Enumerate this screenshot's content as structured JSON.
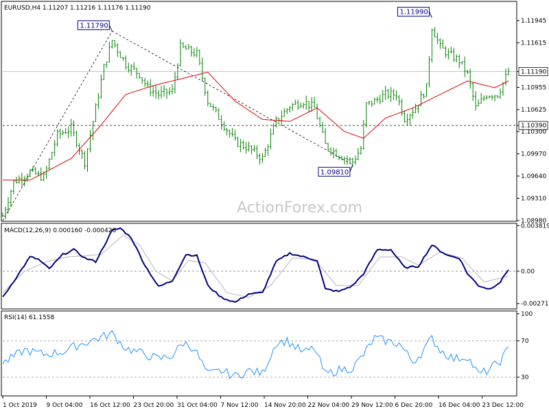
{
  "colors": {
    "price_bar": "#008000",
    "ma": "#e00000",
    "macd_line": "#000080",
    "signal_line": "#b4b4b4",
    "rsi": "#1e90ff",
    "callout_border": "#000080",
    "level_line": "#808080"
  },
  "watermark": "ActionForex.com",
  "chart_data": [
    {
      "type": "line",
      "panel": "price",
      "title": "EURUSD,H4  1.11207 1.11216 1.11176 1.11190",
      "ylim": [
        1.0898,
        1.1222
      ],
      "yticks": [
        "1.11945",
        "1.11615",
        "1.11190",
        "1.10955",
        "1.10625",
        "1.10390",
        "1.10300",
        "1.09970",
        "1.09640",
        "1.09310",
        "1.08980"
      ],
      "ytick_values": [
        1.11945,
        1.11615,
        1.1119,
        1.10955,
        1.10625,
        1.1039,
        1.103,
        1.0997,
        1.0964,
        1.0931,
        1.0898
      ],
      "current_price_label": "1.11190",
      "current_price": 1.1119,
      "level_label": "1.10390",
      "level": 1.1039,
      "x_labels": [
        "1 Oct 2019",
        "9 Oct 04:00",
        "16 Oct 12:00",
        "23 Oct 20:00",
        "31 Oct 04:00",
        "7 Nov 12:00",
        "14 Nov 20:00",
        "22 Nov 04:00",
        "29 Nov 12:00",
        "6 Dec 20:00",
        "16 Dec 04:00",
        "23 Dec 12:00"
      ],
      "annotations": [
        {
          "label": "1.11790",
          "value": 1.1179,
          "x_index": 40
        },
        {
          "label": "1.11990",
          "value": 1.1199,
          "x_index": 157
        },
        {
          "label": "1.09810",
          "value": 1.0981,
          "x_index": 128
        }
      ],
      "trendlines": [
        {
          "from": [
            0,
            1.0898
          ],
          "to": [
            40,
            1.1179
          ]
        },
        {
          "from": [
            40,
            1.1179
          ],
          "to": [
            128,
            1.0981
          ]
        }
      ],
      "close_keys": [
        [
          0,
          1.0905
        ],
        [
          4,
          1.0955
        ],
        [
          10,
          1.097
        ],
        [
          15,
          1.0962
        ],
        [
          20,
          1.1025
        ],
        [
          25,
          1.1035
        ],
        [
          30,
          1.0985
        ],
        [
          34,
          1.1065
        ],
        [
          37,
          1.1125
        ],
        [
          40,
          1.1165
        ],
        [
          45,
          1.113
        ],
        [
          50,
          1.1115
        ],
        [
          53,
          1.1095
        ],
        [
          57,
          1.1085
        ],
        [
          62,
          1.109
        ],
        [
          65,
          1.1155
        ],
        [
          68,
          1.115
        ],
        [
          71,
          1.1145
        ],
        [
          75,
          1.1075
        ],
        [
          80,
          1.1045
        ],
        [
          85,
          1.1015
        ],
        [
          90,
          1.1005
        ],
        [
          95,
          1.099
        ],
        [
          100,
          1.1045
        ],
        [
          105,
          1.1068
        ],
        [
          110,
          1.1075
        ],
        [
          114,
          1.1065
        ],
        [
          118,
          1.101
        ],
        [
          123,
          1.0995
        ],
        [
          128,
          1.0985
        ],
        [
          131,
          1.1005
        ],
        [
          133,
          1.107
        ],
        [
          136,
          1.1075
        ],
        [
          140,
          1.1085
        ],
        [
          144,
          1.1085
        ],
        [
          147,
          1.105
        ],
        [
          151,
          1.1065
        ],
        [
          155,
          1.1095
        ],
        [
          157,
          1.1185
        ],
        [
          160,
          1.1155
        ],
        [
          163,
          1.1145
        ],
        [
          167,
          1.1135
        ],
        [
          170,
          1.1115
        ],
        [
          173,
          1.1065
        ],
        [
          177,
          1.1085
        ],
        [
          181,
          1.1085
        ],
        [
          185,
          1.1119
        ]
      ],
      "ma_keys": [
        [
          0,
          1.0958
        ],
        [
          10,
          1.0958
        ],
        [
          25,
          1.099
        ],
        [
          35,
          1.1035
        ],
        [
          45,
          1.1085
        ],
        [
          55,
          1.1098
        ],
        [
          65,
          1.1108
        ],
        [
          75,
          1.1118
        ],
        [
          85,
          1.1075
        ],
        [
          95,
          1.1048
        ],
        [
          105,
          1.1045
        ],
        [
          115,
          1.1065
        ],
        [
          125,
          1.103
        ],
        [
          132,
          1.102
        ],
        [
          140,
          1.105
        ],
        [
          150,
          1.1065
        ],
        [
          160,
          1.1085
        ],
        [
          170,
          1.1105
        ],
        [
          180,
          1.1095
        ],
        [
          185,
          1.1105
        ]
      ]
    },
    {
      "type": "line",
      "panel": "macd",
      "title": "MACD(12,26,9) 0.000160 -0.000428",
      "ylim": [
        -0.0031,
        0.00395
      ],
      "yticks": [
        "0.003819",
        "0.00",
        "-0.002713"
      ],
      "ytick_values": [
        0.003819,
        0.0,
        -0.002713
      ],
      "series": [
        {
          "role": "macd",
          "keys": [
            [
              0,
              -0.0022
            ],
            [
              5,
              -0.0005
            ],
            [
              10,
              0.0012
            ],
            [
              13,
              0.001
            ],
            [
              17,
              0.0002
            ],
            [
              22,
              0.0014
            ],
            [
              26,
              0.0018
            ],
            [
              30,
              0.0011
            ],
            [
              34,
              0.0008
            ],
            [
              40,
              0.0034
            ],
            [
              43,
              0.0036
            ],
            [
              47,
              0.0028
            ],
            [
              52,
              0.0005
            ],
            [
              57,
              -0.0013
            ],
            [
              62,
              -0.0008
            ],
            [
              67,
              0.0014
            ],
            [
              71,
              0.0013
            ],
            [
              75,
              -0.0012
            ],
            [
              80,
              -0.0022
            ],
            [
              85,
              -0.0026
            ],
            [
              90,
              -0.0019
            ],
            [
              95,
              -0.0018
            ],
            [
              100,
              0.0008
            ],
            [
              105,
              0.0015
            ],
            [
              110,
              0.0012
            ],
            [
              115,
              0.0009
            ],
            [
              118,
              -0.0015
            ],
            [
              123,
              -0.0017
            ],
            [
              128,
              -0.0012
            ],
            [
              132,
              -0.0002
            ],
            [
              137,
              0.0018
            ],
            [
              142,
              0.0018
            ],
            [
              147,
              0.0003
            ],
            [
              152,
              0.0004
            ],
            [
              157,
              0.0022
            ],
            [
              160,
              0.0017
            ],
            [
              163,
              0.0013
            ],
            [
              167,
              0.0011
            ],
            [
              170,
              -0.0002
            ],
            [
              174,
              -0.0012
            ],
            [
              178,
              -0.0015
            ],
            [
              182,
              -0.0009
            ],
            [
              185,
              0.00016
            ]
          ]
        },
        {
          "role": "signal",
          "keys": [
            [
              0,
              -0.0018
            ],
            [
              8,
              0.0
            ],
            [
              16,
              0.0008
            ],
            [
              24,
              0.0012
            ],
            [
              30,
              0.0013
            ],
            [
              36,
              0.0014
            ],
            [
              44,
              0.003
            ],
            [
              50,
              0.0022
            ],
            [
              56,
              0.0
            ],
            [
              62,
              -0.0008
            ],
            [
              68,
              0.0009
            ],
            [
              74,
              0.0007
            ],
            [
              82,
              -0.0018
            ],
            [
              90,
              -0.0022
            ],
            [
              98,
              -0.0012
            ],
            [
              106,
              0.0011
            ],
            [
              114,
              0.001
            ],
            [
              122,
              -0.0012
            ],
            [
              130,
              -0.0012
            ],
            [
              138,
              0.0012
            ],
            [
              146,
              0.0012
            ],
            [
              152,
              0.0005
            ],
            [
              160,
              0.0016
            ],
            [
              168,
              0.0011
            ],
            [
              176,
              -0.0009
            ],
            [
              185,
              -0.000428
            ]
          ]
        }
      ]
    },
    {
      "type": "line",
      "panel": "rsi",
      "title": "RSI(14) 61.1558",
      "ylim": [
        0,
        100
      ],
      "yticks": [
        "100",
        "70",
        "30"
      ],
      "ytick_values": [
        100,
        70,
        30
      ],
      "levels": [
        70,
        30
      ],
      "keys": [
        [
          0,
          45
        ],
        [
          8,
          60
        ],
        [
          15,
          55
        ],
        [
          22,
          58
        ],
        [
          28,
          66
        ],
        [
          34,
          72
        ],
        [
          40,
          78
        ],
        [
          45,
          62
        ],
        [
          52,
          55
        ],
        [
          57,
          50
        ],
        [
          62,
          54
        ],
        [
          66,
          68
        ],
        [
          70,
          62
        ],
        [
          75,
          33
        ],
        [
          80,
          37
        ],
        [
          85,
          31
        ],
        [
          90,
          37
        ],
        [
          95,
          34
        ],
        [
          100,
          68
        ],
        [
          104,
          70
        ],
        [
          110,
          57
        ],
        [
          114,
          62
        ],
        [
          118,
          33
        ],
        [
          123,
          38
        ],
        [
          128,
          40
        ],
        [
          132,
          55
        ],
        [
          136,
          73
        ],
        [
          140,
          70
        ],
        [
          145,
          67
        ],
        [
          150,
          47
        ],
        [
          153,
          56
        ],
        [
          157,
          73
        ],
        [
          160,
          60
        ],
        [
          165,
          50
        ],
        [
          170,
          53
        ],
        [
          174,
          33
        ],
        [
          178,
          38
        ],
        [
          182,
          48
        ],
        [
          185,
          61
        ]
      ]
    }
  ]
}
